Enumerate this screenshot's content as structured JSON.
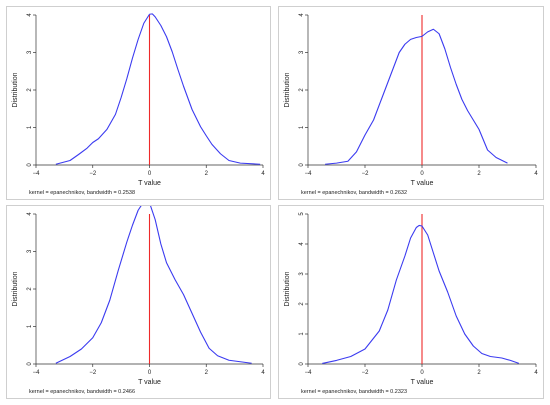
{
  "chart_data": [
    {
      "type": "line",
      "xlabel": "T value",
      "ylabel": "Distribution",
      "note": "kernel = epanechnikov, bandwidth = 0.2538",
      "xlim": [
        -4,
        4
      ],
      "ylim": [
        0,
        4
      ],
      "xticks": [
        -4,
        -2,
        0,
        2,
        4
      ],
      "yticks": [
        0,
        1,
        2,
        3,
        4
      ],
      "vline": 0,
      "colors": {
        "line": "#3b3bf0",
        "vline": "#ee2a2a"
      },
      "series": [
        {
          "x": [
            -3.3,
            -2.8,
            -2.5,
            -2.2,
            -2.0,
            -1.8,
            -1.5,
            -1.2,
            -1.0,
            -0.8,
            -0.6,
            -0.4,
            -0.2,
            0.0,
            0.1,
            0.2,
            0.4,
            0.6,
            0.8,
            1.0,
            1.2,
            1.5,
            1.8,
            2.0,
            2.2,
            2.5,
            2.8,
            3.2,
            3.9
          ],
          "y": [
            0.02,
            0.12,
            0.28,
            0.45,
            0.6,
            0.7,
            0.95,
            1.35,
            1.8,
            2.3,
            2.85,
            3.35,
            3.78,
            4.02,
            4.03,
            3.95,
            3.72,
            3.42,
            3.02,
            2.55,
            2.1,
            1.48,
            1.02,
            0.78,
            0.55,
            0.3,
            0.12,
            0.05,
            0.02
          ]
        }
      ]
    },
    {
      "type": "line",
      "xlabel": "T value",
      "ylabel": "Distribution",
      "note": "kernel = epanechnikov, bandwidth = 0.2632",
      "xlim": [
        -4,
        4
      ],
      "ylim": [
        0,
        4
      ],
      "xticks": [
        -4,
        -2,
        0,
        2,
        4
      ],
      "yticks": [
        0,
        1,
        2,
        3,
        4
      ],
      "vline": 0,
      "colors": {
        "line": "#3b3bf0",
        "vline": "#ee2a2a"
      },
      "series": [
        {
          "x": [
            -3.4,
            -3.0,
            -2.6,
            -2.3,
            -2.0,
            -1.7,
            -1.4,
            -1.1,
            -0.8,
            -0.6,
            -0.4,
            -0.2,
            0.0,
            0.2,
            0.4,
            0.6,
            0.8,
            1.0,
            1.2,
            1.4,
            1.6,
            1.8,
            2.0,
            2.3,
            2.6,
            3.0
          ],
          "y": [
            0.02,
            0.05,
            0.1,
            0.35,
            0.8,
            1.2,
            1.8,
            2.4,
            3.0,
            3.22,
            3.35,
            3.4,
            3.43,
            3.55,
            3.62,
            3.5,
            3.1,
            2.6,
            2.15,
            1.75,
            1.45,
            1.2,
            0.95,
            0.4,
            0.2,
            0.05
          ]
        }
      ]
    },
    {
      "type": "line",
      "xlabel": "T value",
      "ylabel": "Distribution",
      "note": "kernel = epanechnikov, bandwidth = 0.2466",
      "xlim": [
        -4,
        4
      ],
      "ylim": [
        0,
        4
      ],
      "xticks": [
        -4,
        -2,
        0,
        2,
        4
      ],
      "yticks": [
        0,
        1,
        2,
        3,
        4
      ],
      "vline": 0,
      "colors": {
        "line": "#3b3bf0",
        "vline": "#ee2a2a"
      },
      "series": [
        {
          "x": [
            -3.3,
            -2.8,
            -2.4,
            -2.0,
            -1.7,
            -1.4,
            -1.1,
            -0.8,
            -0.6,
            -0.4,
            -0.2,
            -0.1,
            0.0,
            0.2,
            0.4,
            0.6,
            0.9,
            1.2,
            1.5,
            1.8,
            2.1,
            2.4,
            2.8,
            3.3,
            3.6
          ],
          "y": [
            0.02,
            0.2,
            0.4,
            0.7,
            1.1,
            1.7,
            2.5,
            3.25,
            3.7,
            4.1,
            4.33,
            4.38,
            4.3,
            3.85,
            3.2,
            2.7,
            2.25,
            1.85,
            1.35,
            0.85,
            0.42,
            0.22,
            0.1,
            0.05,
            0.02
          ]
        }
      ]
    },
    {
      "type": "line",
      "xlabel": "T value",
      "ylabel": "Distribution",
      "note": "kernel = epanechnikov, bandwidth = 0.2323",
      "xlim": [
        -4,
        4
      ],
      "ylim": [
        0,
        5
      ],
      "xticks": [
        -4,
        -2,
        0,
        2,
        4
      ],
      "yticks": [
        0,
        1,
        2,
        3,
        4,
        5
      ],
      "vline": 0,
      "colors": {
        "line": "#3b3bf0",
        "vline": "#ee2a2a"
      },
      "series": [
        {
          "x": [
            -3.5,
            -3.0,
            -2.5,
            -2.0,
            -1.5,
            -1.2,
            -0.9,
            -0.6,
            -0.4,
            -0.2,
            -0.1,
            0.0,
            0.2,
            0.4,
            0.6,
            0.9,
            1.2,
            1.5,
            1.8,
            2.1,
            2.4,
            2.8,
            3.1,
            3.4
          ],
          "y": [
            0.02,
            0.12,
            0.25,
            0.5,
            1.1,
            1.8,
            2.8,
            3.6,
            4.2,
            4.55,
            4.62,
            4.6,
            4.3,
            3.7,
            3.1,
            2.4,
            1.6,
            1.0,
            0.6,
            0.35,
            0.25,
            0.2,
            0.12,
            0.02
          ]
        }
      ]
    }
  ]
}
